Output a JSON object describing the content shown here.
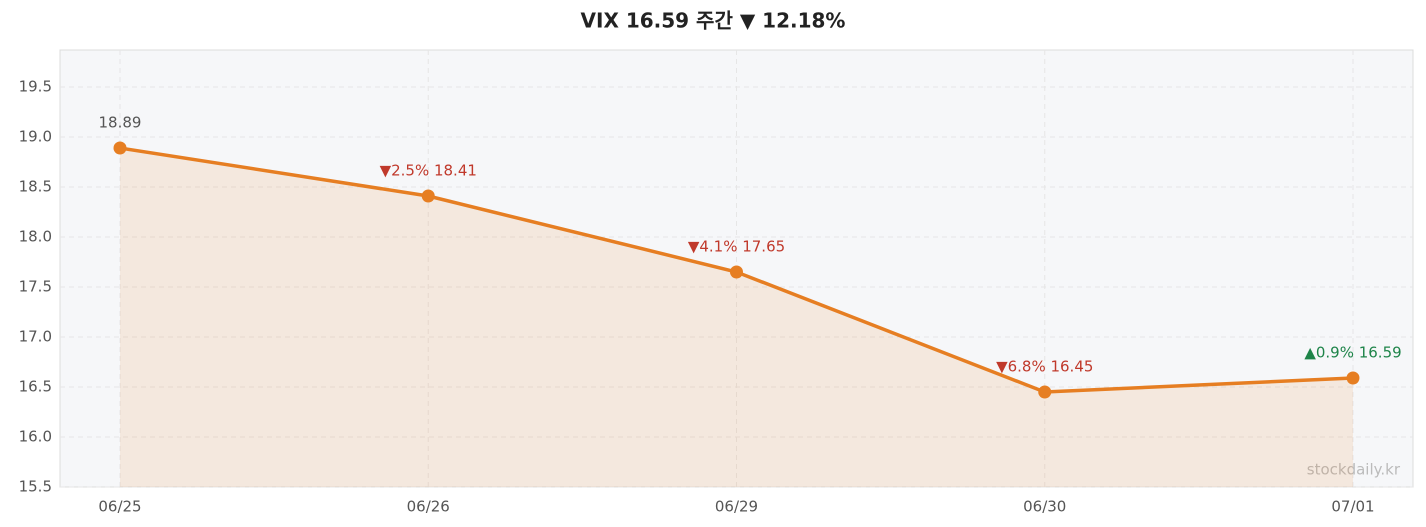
{
  "chart_data": {
    "type": "line",
    "title": "VIX  16.59  주간 ▼ 12.18%",
    "categories": [
      "06/25",
      "06/26",
      "06/29",
      "06/30",
      "07/01"
    ],
    "values": [
      18.89,
      18.41,
      17.65,
      16.45,
      16.59
    ],
    "value_labels": [
      "18.89",
      "▼2.5%  18.41",
      "▼4.1%  17.65",
      "▼6.8%  16.45",
      "▲0.9%  16.59"
    ],
    "value_label_colors": [
      "#555555",
      "#c0392b",
      "#c0392b",
      "#c0392b",
      "#1e8449"
    ],
    "color": "#e67e22",
    "ylim": [
      15.5,
      19.87
    ],
    "yticks": [
      15.5,
      {
        "value": 16,
        "label": "16.0"
      },
      16.5,
      {
        "value": 17,
        "label": "17.0"
      },
      17.5,
      {
        "value": 18,
        "label": "18.0"
      },
      18.5,
      {
        "value": 19,
        "label": "19.0"
      },
      19.5
    ],
    "grid": true,
    "watermark": "stockdaily.kr"
  }
}
